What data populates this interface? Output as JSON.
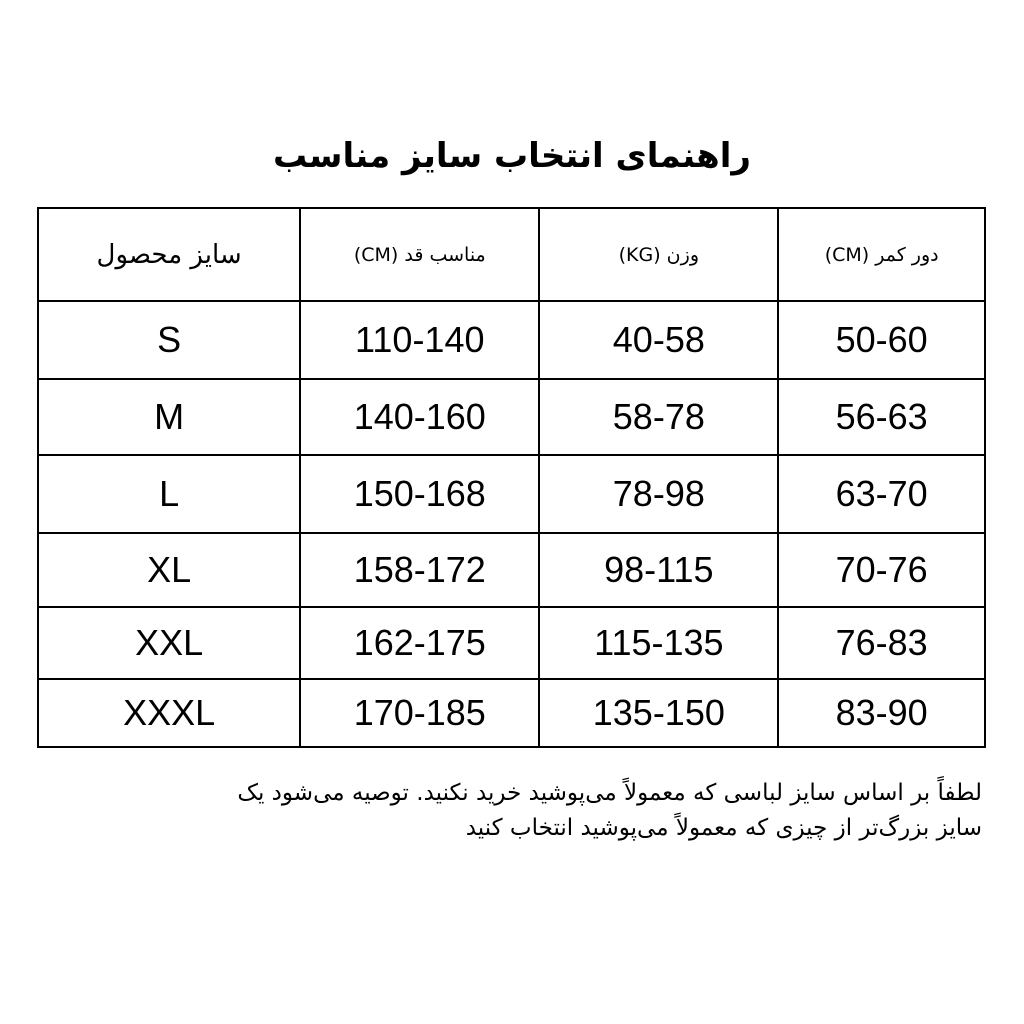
{
  "title": "راهنمای انتخاب سایز مناسب",
  "table": {
    "headers": [
      "سایز محصول",
      "مناسب قد (CM)",
      "وزن (KG)",
      "دور کمر (CM)"
    ],
    "rows": [
      [
        "S",
        "110-140",
        "40-58",
        "50-60"
      ],
      [
        "M",
        "140-160",
        "58-78",
        "56-63"
      ],
      [
        "L",
        "150-168",
        "78-98",
        "63-70"
      ],
      [
        "XL",
        "158-172",
        "98-115",
        "70-76"
      ],
      [
        "XXL",
        "162-175",
        "115-135",
        "76-83"
      ],
      [
        "XXXL",
        "170-185",
        "135-150",
        "83-90"
      ]
    ]
  },
  "note": {
    "line1": "لطفاً بر اساس سایز لباسی که معمولاً می‌پوشید خرید نکنید. توصیه می‌شود یک",
    "line2": "سایز بزرگ‌تر از چیزی که معمولاً می‌پوشید انتخاب کنید"
  }
}
